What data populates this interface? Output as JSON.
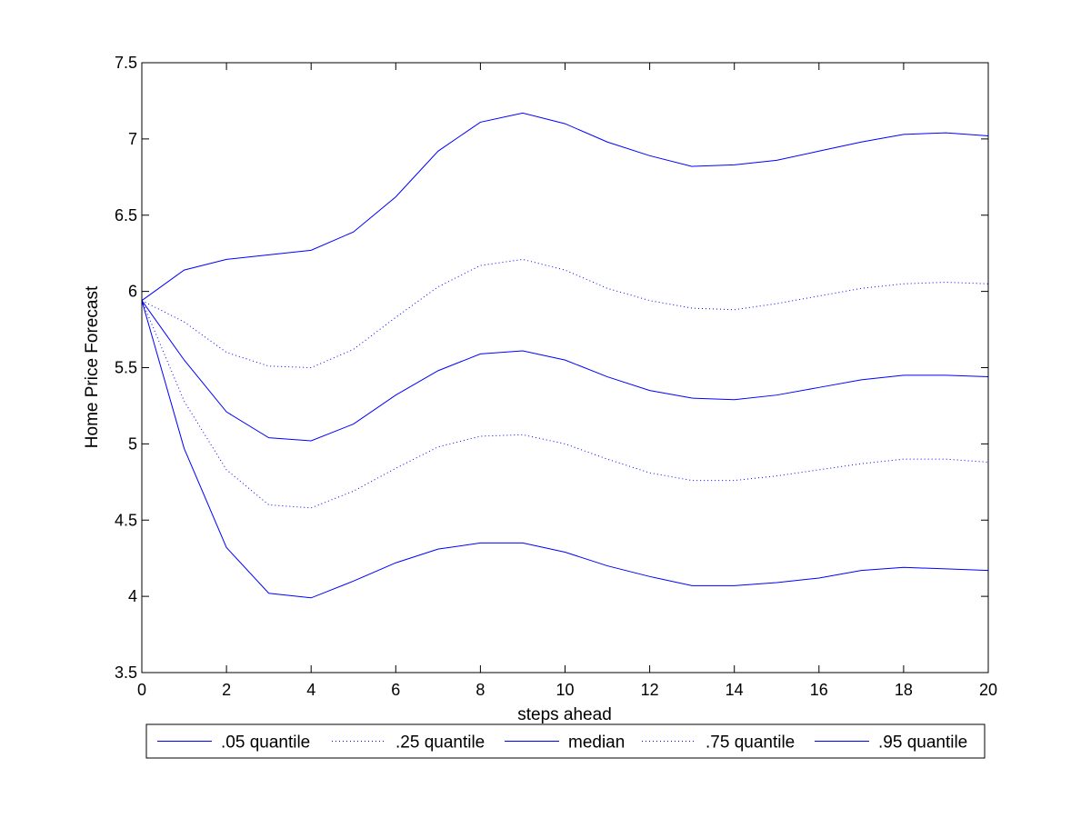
{
  "chart_data": {
    "type": "line",
    "title": "",
    "xlabel": "steps ahead",
    "ylabel": "Home Price Forecast",
    "xlim": [
      0,
      20
    ],
    "ylim": [
      3.5,
      7.5
    ],
    "xticks": [
      0,
      2,
      4,
      6,
      8,
      10,
      12,
      14,
      16,
      18,
      20
    ],
    "yticks": [
      3.5,
      4,
      4.5,
      5,
      5.5,
      6,
      6.5,
      7,
      7.5
    ],
    "xtick_labels": [
      "0",
      "2",
      "4",
      "6",
      "8",
      "10",
      "12",
      "14",
      "16",
      "18",
      "20"
    ],
    "ytick_labels": [
      "3.5",
      "4",
      "4.5",
      "5",
      "5.5",
      "6",
      "6.5",
      "7",
      "7.5"
    ],
    "grid": false,
    "legend_position": "bottom, outside plot, horizontal",
    "line_color": "#0000ff",
    "x": [
      0,
      1,
      2,
      3,
      4,
      5,
      6,
      7,
      8,
      9,
      10,
      11,
      12,
      13,
      14,
      15,
      16,
      17,
      18,
      19,
      20
    ],
    "series": [
      {
        "name": ".05 quantile",
        "style": "solid",
        "values": [
          5.94,
          4.97,
          4.32,
          4.02,
          3.99,
          4.1,
          4.22,
          4.31,
          4.35,
          4.35,
          4.29,
          4.2,
          4.13,
          4.07,
          4.07,
          4.09,
          4.12,
          4.17,
          4.19,
          4.18,
          4.17
        ]
      },
      {
        "name": ".25 quantile",
        "style": "dotted",
        "values": [
          5.94,
          5.28,
          4.83,
          4.6,
          4.58,
          4.69,
          4.84,
          4.98,
          5.05,
          5.06,
          5.0,
          4.9,
          4.81,
          4.76,
          4.76,
          4.79,
          4.83,
          4.87,
          4.9,
          4.9,
          4.88
        ]
      },
      {
        "name": "median",
        "style": "solid",
        "values": [
          5.94,
          5.55,
          5.21,
          5.04,
          5.02,
          5.13,
          5.32,
          5.48,
          5.59,
          5.61,
          5.55,
          5.44,
          5.35,
          5.3,
          5.29,
          5.32,
          5.37,
          5.42,
          5.45,
          5.45,
          5.44
        ]
      },
      {
        "name": ".75 quantile",
        "style": "dotted",
        "values": [
          5.94,
          5.8,
          5.6,
          5.51,
          5.5,
          5.62,
          5.83,
          6.03,
          6.17,
          6.21,
          6.14,
          6.02,
          5.94,
          5.89,
          5.88,
          5.92,
          5.97,
          6.02,
          6.05,
          6.06,
          6.05
        ]
      },
      {
        "name": ".95 quantile",
        "style": "solid",
        "values": [
          5.94,
          6.14,
          6.21,
          6.24,
          6.27,
          6.39,
          6.62,
          6.92,
          7.11,
          7.17,
          7.1,
          6.98,
          6.89,
          6.82,
          6.83,
          6.86,
          6.92,
          6.98,
          7.03,
          7.04,
          7.02
        ]
      }
    ]
  }
}
